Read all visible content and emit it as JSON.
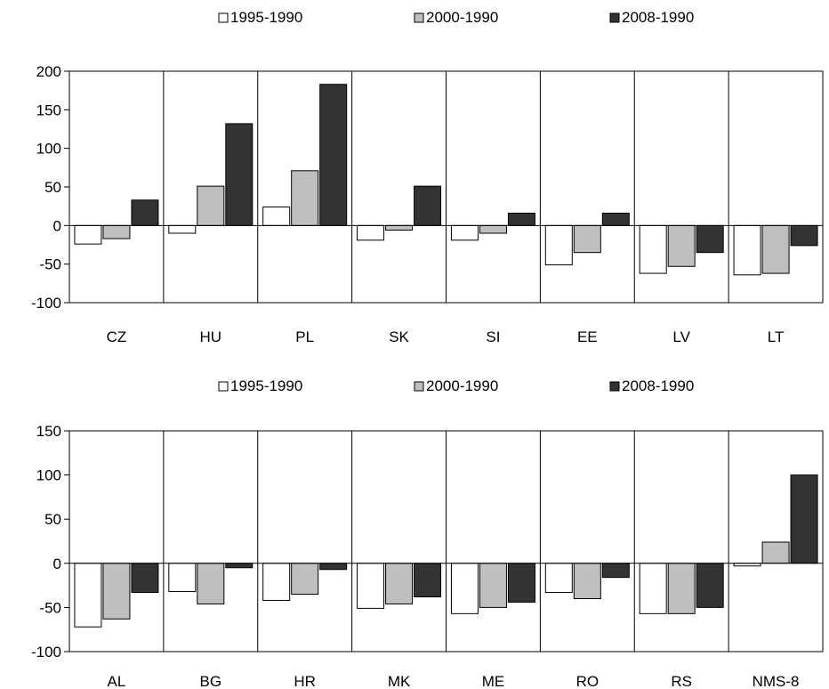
{
  "chart_data": [
    {
      "type": "bar",
      "categories": [
        "CZ",
        "HU",
        "PL",
        "SK",
        "SI",
        "EE",
        "LV",
        "LT"
      ],
      "series": [
        {
          "name": "1995-1990",
          "color": "#ffffff",
          "values": [
            -24,
            -10,
            24,
            -19,
            -19,
            -51,
            -62,
            -64
          ]
        },
        {
          "name": "2000-1990",
          "color": "#bfbfbf",
          "values": [
            -17,
            51,
            71,
            -6,
            -10,
            -35,
            -53,
            -62
          ]
        },
        {
          "name": "2008-1990",
          "color": "#333333",
          "values": [
            33,
            132,
            183,
            51,
            16,
            16,
            -35,
            -26
          ]
        }
      ],
      "yticks": [
        "200",
        "150",
        "100",
        "50",
        "0",
        "-50",
        "-100"
      ],
      "ylim": [
        -100,
        200
      ],
      "legend_position": "top-center",
      "panel_dividers": true
    },
    {
      "type": "bar",
      "categories": [
        "AL",
        "BG",
        "HR",
        "MK",
        "ME",
        "RO",
        "RS",
        "NMS-8"
      ],
      "series": [
        {
          "name": "1995-1990",
          "color": "#ffffff",
          "values": [
            -72,
            -32,
            -42,
            -51,
            -57,
            -33,
            -57,
            -3
          ]
        },
        {
          "name": "2000-1990",
          "color": "#bfbfbf",
          "values": [
            -63,
            -46,
            -35,
            -46,
            -50,
            -40,
            -57,
            24
          ]
        },
        {
          "name": "2008-1990",
          "color": "#333333",
          "values": [
            -33,
            -5,
            -7,
            -38,
            -44,
            -16,
            -50,
            100
          ]
        }
      ],
      "yticks": [
        "150",
        "100",
        "50",
        "0",
        "-50",
        "-100"
      ],
      "ylim": [
        -100,
        150
      ],
      "legend_position": "top-center",
      "panel_dividers": true
    }
  ]
}
